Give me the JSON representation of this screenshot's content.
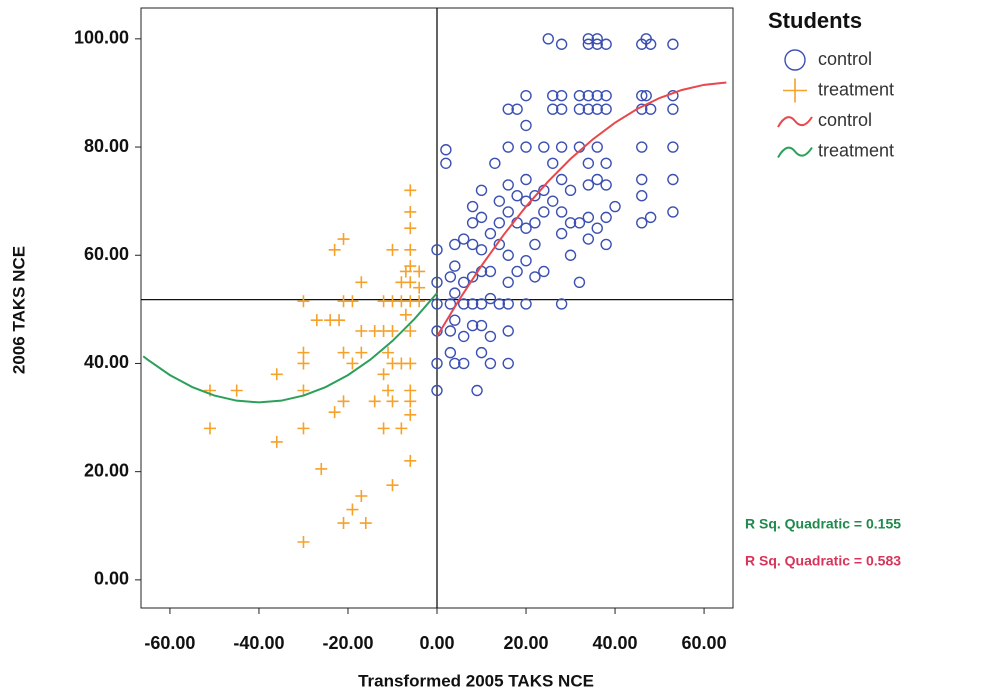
{
  "chart_data": {
    "type": "scatter",
    "x_label": "Transformed 2005 TAKS NCE",
    "y_label": "2006 TAKS NCE",
    "legend_title": "Students",
    "legend_position": "right",
    "xlim": [
      -66.5,
      66.5
    ],
    "ylim": [
      -5.2,
      105.7
    ],
    "xticks": [
      {
        "value": -60,
        "label": "-60.00"
      },
      {
        "value": -40,
        "label": "-40.00"
      },
      {
        "value": -20,
        "label": "-20.00"
      },
      {
        "value": 0,
        "label": "0.00"
      },
      {
        "value": 20,
        "label": "20.00"
      },
      {
        "value": 40,
        "label": "40.00"
      },
      {
        "value": 60,
        "label": "60.00"
      }
    ],
    "yticks": [
      {
        "value": 0,
        "label": "0.00"
      },
      {
        "value": 20,
        "label": "20.00"
      },
      {
        "value": 40,
        "label": "40.00"
      },
      {
        "value": 60,
        "label": "60.00"
      },
      {
        "value": 80,
        "label": "80.00"
      },
      {
        "value": 100,
        "label": "100.00"
      }
    ],
    "ref_x": 0,
    "ref_y": 51.8,
    "series": [
      {
        "name": "control",
        "kind": "circle",
        "color": "#3b50b2",
        "x": [
          0,
          0,
          0,
          0,
          0,
          0,
          2,
          2,
          3,
          3,
          3,
          3,
          4,
          4,
          4,
          4,
          4,
          6,
          6,
          6,
          6,
          6,
          8,
          8,
          8,
          8,
          8,
          8,
          9,
          10,
          10,
          10,
          10,
          10,
          10,
          10,
          12,
          12,
          12,
          12,
          12,
          13,
          14,
          14,
          14,
          14,
          16,
          16,
          16,
          16,
          16,
          16,
          16,
          16,
          16,
          18,
          18,
          18,
          18,
          20,
          20,
          20,
          20,
          20,
          20,
          20,
          20,
          22,
          22,
          22,
          22,
          24,
          24,
          24,
          24,
          25,
          26,
          26,
          26,
          26,
          28,
          28,
          28,
          28,
          28,
          28,
          28,
          28,
          30,
          30,
          30,
          32,
          32,
          32,
          32,
          32,
          34,
          34,
          34,
          34,
          34,
          34,
          34,
          34,
          36,
          36,
          36,
          36,
          36,
          36,
          36,
          38,
          38,
          38,
          38,
          38,
          38,
          38,
          40,
          46,
          46,
          46,
          46,
          46,
          46,
          46,
          47,
          47,
          48,
          48,
          48,
          53,
          53,
          53,
          53,
          53,
          53
        ],
        "values": [
          35,
          40,
          46,
          51,
          55,
          61,
          79.5,
          77,
          42,
          46,
          51,
          56,
          62,
          58,
          53,
          48,
          40,
          63,
          55,
          51,
          45,
          40,
          69,
          66,
          62,
          56,
          51,
          47,
          35,
          72,
          67,
          61,
          57,
          51,
          47,
          42,
          64,
          57,
          52,
          45,
          40,
          77,
          70,
          66,
          62,
          51,
          87,
          80,
          73,
          68,
          60,
          55,
          51,
          46,
          40,
          87,
          71,
          66,
          57,
          89.5,
          84,
          80,
          74,
          70,
          65,
          59,
          51,
          71,
          66,
          62,
          56,
          80,
          72,
          68,
          57,
          100,
          89.5,
          87,
          77,
          70,
          99,
          89.5,
          87,
          80,
          74,
          68,
          64,
          51,
          72,
          66,
          60,
          89.5,
          87,
          80,
          66,
          55,
          100,
          99,
          89.5,
          87,
          77,
          73,
          67,
          63,
          100,
          99,
          89.5,
          87,
          80,
          74,
          65,
          99,
          89.5,
          87,
          77,
          73,
          67,
          62,
          69,
          99,
          89.5,
          87,
          80,
          74,
          71,
          66,
          100,
          89.5,
          99,
          87,
          67,
          99,
          89.5,
          87,
          80,
          74,
          68
        ]
      },
      {
        "name": "treatment",
        "kind": "plus",
        "color": "#f5a12a",
        "x": [
          -51,
          -51,
          -45,
          -36,
          -36,
          -30,
          -30,
          -30,
          -30,
          -30,
          -30,
          -27,
          -26,
          -24,
          -23,
          -23,
          -22,
          -21,
          -21,
          -21,
          -21,
          -21,
          -19,
          -19,
          -19,
          -17,
          -17,
          -17,
          -17,
          -16,
          -14,
          -14,
          -12,
          -12,
          -12,
          -12,
          -11,
          -11,
          -10,
          -10,
          -10,
          -10,
          -10,
          -10,
          -8,
          -8,
          -8,
          -8,
          -7,
          -7,
          -6,
          -6,
          -6,
          -6,
          -6,
          -6,
          -6,
          -6,
          -6,
          -6,
          -6,
          -6,
          -6,
          -4,
          -4,
          -4
        ],
        "values": [
          35,
          28,
          35,
          38,
          25.5,
          51.5,
          42,
          40,
          35,
          28,
          7,
          48,
          20.5,
          48,
          61,
          31,
          48,
          63,
          51.5,
          42,
          33,
          10.5,
          51.5,
          40,
          13,
          55,
          46,
          42,
          15.5,
          10.5,
          46,
          33,
          51.5,
          46,
          38,
          28,
          42,
          35,
          61,
          51.5,
          46,
          40,
          33,
          17.5,
          55,
          51.5,
          40,
          28,
          57,
          49,
          72,
          68,
          65,
          61,
          58,
          55,
          51.5,
          46,
          40,
          35,
          33,
          30.5,
          22,
          57,
          54,
          51.5
        ]
      },
      {
        "name": "control",
        "kind": "line",
        "color": "#e8474c",
        "x": [
          0,
          5,
          10,
          15,
          20,
          25,
          30,
          35,
          40,
          45,
          50,
          55,
          60,
          65
        ],
        "values": [
          45,
          51.8,
          58.06,
          63.8,
          69,
          73.67,
          77.81,
          81.42,
          84.5,
          87.05,
          89.06,
          90.55,
          91.5,
          91.92
        ]
      },
      {
        "name": "treatment",
        "kind": "line",
        "color": "#2ba05a",
        "x": [
          -66,
          -65,
          -60,
          -55,
          -50,
          -45,
          -40,
          -35,
          -30,
          -25,
          -20,
          -15,
          -10,
          -5,
          0
        ],
        "values": [
          41.33,
          40.69,
          37.85,
          35.64,
          34.06,
          33.12,
          32.8,
          33.12,
          34.06,
          35.64,
          37.85,
          40.69,
          44.16,
          48.27,
          53
        ]
      }
    ],
    "annotations": [
      {
        "text": "R Sq. Quadratic = 0.155",
        "color": "#1f8a4c"
      },
      {
        "text": "R Sq. Quadratic = 0.583",
        "color": "#d8345a"
      }
    ]
  }
}
